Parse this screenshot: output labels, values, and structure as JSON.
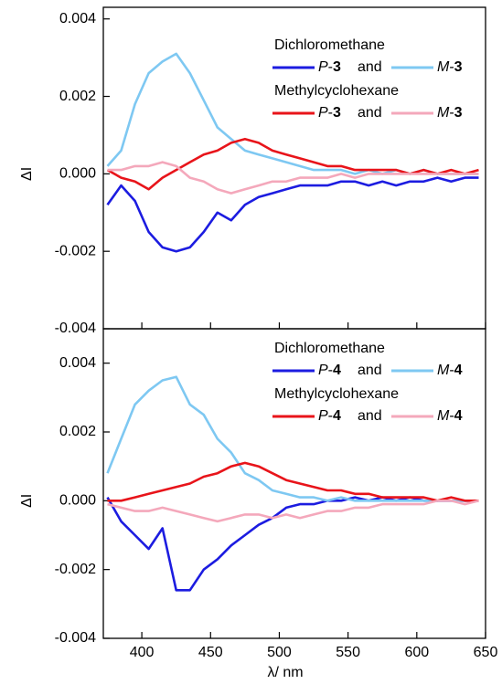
{
  "chart_data": [
    {
      "type": "line",
      "ylabel": "ΔI",
      "x": [
        375,
        385,
        395,
        405,
        415,
        425,
        435,
        445,
        455,
        465,
        475,
        485,
        495,
        505,
        515,
        525,
        535,
        545,
        555,
        565,
        575,
        585,
        595,
        605,
        615,
        625,
        635,
        645
      ],
      "xlim": [
        372,
        650
      ],
      "xticks": [
        400,
        450,
        500,
        550,
        600,
        650
      ],
      "show_xtick_labels": false,
      "ylim": [
        -0.004,
        0.0043
      ],
      "yticks": [
        -0.004,
        -0.002,
        {
          "value": 0,
          "label": "0.000"
        },
        0.002,
        0.004
      ],
      "legend": [
        {
          "title": "Dichloromethane",
          "joiner": "and"
        },
        {
          "title": "Methylcyclohexane",
          "joiner": "and"
        }
      ],
      "series": [
        {
          "name": "P-3",
          "color": "#1c1ce0",
          "values": [
            -0.0008,
            -0.0003,
            -0.0007,
            -0.0015,
            -0.0019,
            -0.002,
            -0.0019,
            -0.0015,
            -0.001,
            -0.0012,
            -0.0008,
            -0.0006,
            -0.0005,
            -0.0004,
            -0.0003,
            -0.0003,
            -0.0003,
            -0.0002,
            -0.0002,
            -0.0003,
            -0.0002,
            -0.0003,
            -0.0002,
            -0.0002,
            -0.0001,
            -0.0002,
            -0.0001,
            -0.0001
          ]
        },
        {
          "name": "M-3",
          "color": "#7ec8f2",
          "values": [
            0.0002,
            0.0006,
            0.0018,
            0.0026,
            0.0029,
            0.0031,
            0.0026,
            0.0019,
            0.0012,
            0.0009,
            0.0006,
            0.0005,
            0.0004,
            0.0003,
            0.0002,
            0.0001,
            0.0001,
            0.0001,
            0,
            0.0001,
            0,
            0.0001,
            0,
            0.0001,
            0,
            0,
            0,
            0
          ]
        },
        {
          "name": "P-3",
          "color": "#e8141a",
          "values": [
            0.0001,
            -0.0001,
            -0.0002,
            -0.0004,
            -0.0001,
            0.0001,
            0.0003,
            0.0005,
            0.0006,
            0.0008,
            0.0009,
            0.0008,
            0.0006,
            0.0005,
            0.0004,
            0.0003,
            0.0002,
            0.0002,
            0.0001,
            0.0001,
            0.0001,
            0.0001,
            0,
            0.0001,
            0,
            0.0001,
            0,
            0.0001
          ]
        },
        {
          "name": "M-3",
          "color": "#f4a8bb",
          "values": [
            0.0001,
            0.0001,
            0.0002,
            0.0002,
            0.0003,
            0.0002,
            -0.0001,
            -0.0002,
            -0.0004,
            -0.0005,
            -0.0004,
            -0.0003,
            -0.0002,
            -0.0002,
            -0.0001,
            -0.0001,
            -0.0001,
            0,
            -0.0001,
            0,
            0,
            0,
            0,
            0,
            0,
            0,
            0,
            0
          ]
        }
      ]
    },
    {
      "type": "line",
      "ylabel": "ΔI",
      "xlabel": "λ/ nm",
      "x": [
        375,
        385,
        395,
        405,
        415,
        425,
        435,
        445,
        455,
        465,
        475,
        485,
        495,
        505,
        515,
        525,
        535,
        545,
        555,
        565,
        575,
        585,
        595,
        605,
        615,
        625,
        635,
        645
      ],
      "xlim": [
        372,
        650
      ],
      "xticks": [
        400,
        450,
        500,
        550,
        600,
        650
      ],
      "show_xtick_labels": true,
      "ylim": [
        -0.004,
        0.005
      ],
      "yticks": [
        -0.004,
        -0.002,
        {
          "value": 0,
          "label": "0.000"
        },
        0.002,
        0.004
      ],
      "legend": [
        {
          "title": "Dichloromethane",
          "joiner": "and"
        },
        {
          "title": "Methylcyclohexane",
          "joiner": "and"
        }
      ],
      "series": [
        {
          "name": "P-4",
          "color": "#1c1ce0",
          "values": [
            0.0001,
            -0.0006,
            -0.001,
            -0.0014,
            -0.0008,
            -0.0026,
            -0.0026,
            -0.002,
            -0.0017,
            -0.0013,
            -0.001,
            -0.0007,
            -0.0005,
            -0.0002,
            -0.0001,
            -0.0001,
            0,
            0,
            0.0001,
            0,
            0.0001,
            0,
            0.0001,
            0,
            0,
            0,
            0,
            0
          ]
        },
        {
          "name": "M-4",
          "color": "#7ec8f2",
          "values": [
            0.0008,
            0.0018,
            0.0028,
            0.0032,
            0.0035,
            0.0036,
            0.0028,
            0.0025,
            0.0018,
            0.0014,
            0.0008,
            0.0006,
            0.0003,
            0.0002,
            0.0001,
            0.0001,
            0,
            0.0001,
            0,
            0,
            0,
            0,
            0,
            0,
            0,
            0,
            0,
            0
          ]
        },
        {
          "name": "P-4",
          "color": "#e8141a",
          "values": [
            0,
            0,
            0.0001,
            0.0002,
            0.0003,
            0.0004,
            0.0005,
            0.0007,
            0.0008,
            0.001,
            0.0011,
            0.001,
            0.0008,
            0.0006,
            0.0005,
            0.0004,
            0.0003,
            0.0003,
            0.0002,
            0.0002,
            0.0001,
            0.0001,
            0.0001,
            0.0001,
            0,
            0.0001,
            0,
            0
          ]
        },
        {
          "name": "M-4",
          "color": "#f4a8bb",
          "values": [
            -0.0001,
            -0.0002,
            -0.0003,
            -0.0003,
            -0.0002,
            -0.0003,
            -0.0004,
            -0.0005,
            -0.0006,
            -0.0005,
            -0.0004,
            -0.0004,
            -0.0005,
            -0.0004,
            -0.0005,
            -0.0004,
            -0.0003,
            -0.0003,
            -0.0002,
            -0.0002,
            -0.0001,
            -0.0001,
            -0.0001,
            -0.0001,
            0,
            0,
            -0.0001,
            0
          ]
        }
      ]
    }
  ]
}
